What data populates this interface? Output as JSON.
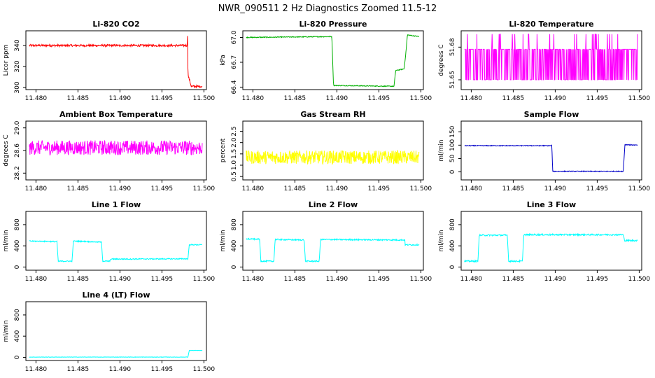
{
  "title": "NWR_090511  2 Hz Diagnostics Zoomed 11.5-12",
  "colors": {
    "red": "#ff0000",
    "green": "#00b000",
    "magenta": "#ff00ff",
    "yellow": "#ffff00",
    "blue": "#0000c8",
    "cyan": "#00ffff"
  },
  "chart_data": [
    {
      "type": "line",
      "title": "Li-820 CO2",
      "ylabel": "Licor ppm",
      "color_key": "red",
      "xlim": [
        11.4788,
        11.5003
      ],
      "ylim": [
        298,
        354
      ],
      "xticks": [
        "11.480",
        "11.485",
        "11.490",
        "11.495",
        "11.500"
      ],
      "xtick_values": [
        11.48,
        11.485,
        11.49,
        11.495,
        11.5
      ],
      "yticks": [
        "300",
        "320",
        "340"
      ],
      "ytick_values": [
        300,
        320,
        340
      ],
      "noise": 1.0,
      "series": [
        {
          "x": [
            11.4792,
            11.498,
            11.49805,
            11.4981,
            11.4985,
            11.4998
          ],
          "y": [
            340,
            340,
            350,
            312,
            301,
            301
          ]
        }
      ]
    },
    {
      "type": "line",
      "title": "Li-820 Pressure",
      "ylabel": "kPa",
      "color_key": "green",
      "xlim": [
        11.4788,
        11.5003
      ],
      "ylim": [
        66.37,
        67.08
      ],
      "xticks": [
        "11.480",
        "11.485",
        "11.490",
        "11.495",
        "11.500"
      ],
      "xtick_values": [
        11.48,
        11.485,
        11.49,
        11.495,
        11.5
      ],
      "yticks": [
        "66.4",
        "66.7",
        "67.0"
      ],
      "ytick_values": [
        66.4,
        66.7,
        67.0
      ],
      "noise": 0.005,
      "series": [
        {
          "x": [
            11.4792,
            11.4894,
            11.4896,
            11.4968,
            11.497,
            11.498,
            11.4982,
            11.4984,
            11.4998
          ],
          "y": [
            67.0,
            67.01,
            66.42,
            66.41,
            66.6,
            66.62,
            66.8,
            67.03,
            67.01
          ]
        }
      ]
    },
    {
      "type": "line",
      "title": "Li-820 Temperature",
      "ylabel": "degrees C",
      "color_key": "magenta",
      "xlim": [
        11.4788,
        11.5003
      ],
      "ylim": [
        51.641,
        51.695
      ],
      "xticks": [
        "11.480",
        "11.485",
        "11.490",
        "11.495",
        "11.500"
      ],
      "xtick_values": [
        11.48,
        11.485,
        11.49,
        11.495,
        11.5
      ],
      "yticks": [
        "51.65",
        "51.68"
      ],
      "ytick_values": [
        51.65,
        51.68
      ],
      "levels": [
        51.65,
        51.678,
        51.692
      ],
      "series": [
        {
          "x": [
            11.4792,
            11.4998
          ],
          "y": [
            51.678,
            51.678
          ]
        }
      ]
    },
    {
      "type": "line",
      "title": "Ambient Box Temperature",
      "ylabel": "degrees C",
      "color_key": "magenta",
      "xlim": [
        11.4788,
        11.5003
      ],
      "ylim": [
        28.08,
        29.12
      ],
      "xticks": [
        "11.480",
        "11.485",
        "11.490",
        "11.495",
        "11.500"
      ],
      "xtick_values": [
        11.48,
        11.485,
        11.49,
        11.495,
        11.5
      ],
      "yticks": [
        "28.2",
        "28.6",
        "29.0"
      ],
      "ytick_values": [
        28.2,
        28.6,
        29.0
      ],
      "noise": 0.13,
      "series": [
        {
          "x": [
            11.4792,
            11.4998
          ],
          "y": [
            28.65,
            28.65
          ]
        }
      ]
    },
    {
      "type": "line",
      "title": "Gas Stream RH",
      "ylabel": "percent",
      "color_key": "yellow",
      "xlim": [
        11.4788,
        11.5003
      ],
      "ylim": [
        0.35,
        2.95
      ],
      "xticks": [
        "11.480",
        "11.485",
        "11.490",
        "11.495",
        "11.500"
      ],
      "xtick_values": [
        11.48,
        11.485,
        11.49,
        11.495,
        11.5
      ],
      "yticks": [
        "0.5",
        "1.0",
        "1.5",
        "2.0",
        "2.5"
      ],
      "ytick_values": [
        0.5,
        1.0,
        1.5,
        2.0,
        2.5
      ],
      "noise": 0.3,
      "series": [
        {
          "x": [
            11.4792,
            11.4998
          ],
          "y": [
            1.35,
            1.35
          ]
        }
      ]
    },
    {
      "type": "line",
      "title": "Sample Flow",
      "ylabel": "ml/min",
      "color_key": "blue",
      "xlim": [
        11.4788,
        11.5003
      ],
      "ylim": [
        -30,
        190
      ],
      "xticks": [
        "11.480",
        "11.485",
        "11.490",
        "11.495",
        "11.500"
      ],
      "xtick_values": [
        11.48,
        11.485,
        11.49,
        11.495,
        11.5
      ],
      "yticks": [
        "0",
        "50",
        "100",
        "150"
      ],
      "ytick_values": [
        0,
        50,
        100,
        150
      ],
      "noise": 1.5,
      "series": [
        {
          "x": [
            11.4792,
            11.4896,
            11.4897,
            11.4981,
            11.4983,
            11.4998
          ],
          "y": [
            98,
            98,
            2,
            2,
            102,
            100
          ]
        }
      ]
    },
    {
      "type": "line",
      "title": "Line 1 Flow",
      "ylabel": "ml/min",
      "color_key": "cyan",
      "xlim": [
        11.4788,
        11.5003
      ],
      "ylim": [
        -60,
        1050
      ],
      "xticks": [
        "11.480",
        "11.485",
        "11.490",
        "11.495",
        "11.500"
      ],
      "xtick_values": [
        11.48,
        11.485,
        11.49,
        11.495,
        11.5
      ],
      "yticks": [
        "0",
        "400",
        "800"
      ],
      "ytick_values": [
        0,
        400,
        800
      ],
      "noise": 10,
      "series": [
        {
          "x": [
            11.4792,
            11.4825,
            11.48265,
            11.4843,
            11.48445,
            11.4878,
            11.48795,
            11.4888,
            11.4889,
            11.4981,
            11.49825,
            11.4998
          ],
          "y": [
            490,
            480,
            110,
            110,
            490,
            470,
            110,
            110,
            150,
            155,
            420,
            420
          ]
        }
      ]
    },
    {
      "type": "line",
      "title": "Line 2 Flow",
      "ylabel": "ml/min",
      "color_key": "cyan",
      "xlim": [
        11.4788,
        11.5003
      ],
      "ylim": [
        -60,
        1050
      ],
      "xticks": [
        "11.480",
        "11.485",
        "11.490",
        "11.495",
        "11.500"
      ],
      "xtick_values": [
        11.48,
        11.485,
        11.49,
        11.495,
        11.5
      ],
      "yticks": [
        "0",
        "400",
        "800"
      ],
      "ytick_values": [
        0,
        400,
        800
      ],
      "noise": 12,
      "series": [
        {
          "x": [
            11.4792,
            11.4808,
            11.48095,
            11.4825,
            11.48265,
            11.4861,
            11.48625,
            11.4879,
            11.48805,
            11.4981,
            11.48815,
            11.4998
          ],
          "y": [
            530,
            525,
            110,
            110,
            520,
            510,
            110,
            110,
            520,
            510,
            410,
            420
          ]
        }
      ]
    },
    {
      "type": "line",
      "title": "Line 3 Flow",
      "ylabel": "ml/min",
      "color_key": "cyan",
      "xlim": [
        11.4788,
        11.5003
      ],
      "ylim": [
        -60,
        1050
      ],
      "xticks": [
        "11.480",
        "11.485",
        "11.490",
        "11.495",
        "11.500"
      ],
      "xtick_values": [
        11.48,
        11.485,
        11.49,
        11.495,
        11.5
      ],
      "yticks": [
        "0",
        "400",
        "800"
      ],
      "ytick_values": [
        0,
        400,
        800
      ],
      "noise": 14,
      "series": [
        {
          "x": [
            11.4792,
            11.4808,
            11.48095,
            11.4843,
            11.48445,
            11.4861,
            11.48625,
            11.4981,
            11.49825,
            11.4998
          ],
          "y": [
            110,
            110,
            600,
            600,
            110,
            110,
            610,
            610,
            500,
            500
          ]
        }
      ]
    },
    {
      "type": "line",
      "title": "Line 4 (LT) Flow",
      "ylabel": "ml/min",
      "color_key": "cyan",
      "xlim": [
        11.4788,
        11.5003
      ],
      "ylim": [
        -60,
        1050
      ],
      "xticks": [
        "11.480",
        "11.485",
        "11.490",
        "11.495",
        "11.500"
      ],
      "xtick_values": [
        11.48,
        11.485,
        11.49,
        11.495,
        11.5
      ],
      "yticks": [
        "0",
        "400",
        "800"
      ],
      "ytick_values": [
        0,
        400,
        800
      ],
      "noise": 3,
      "series": [
        {
          "x": [
            11.4792,
            11.4981,
            11.49825,
            11.4998
          ],
          "y": [
            5,
            5,
            130,
            130
          ]
        }
      ]
    }
  ]
}
